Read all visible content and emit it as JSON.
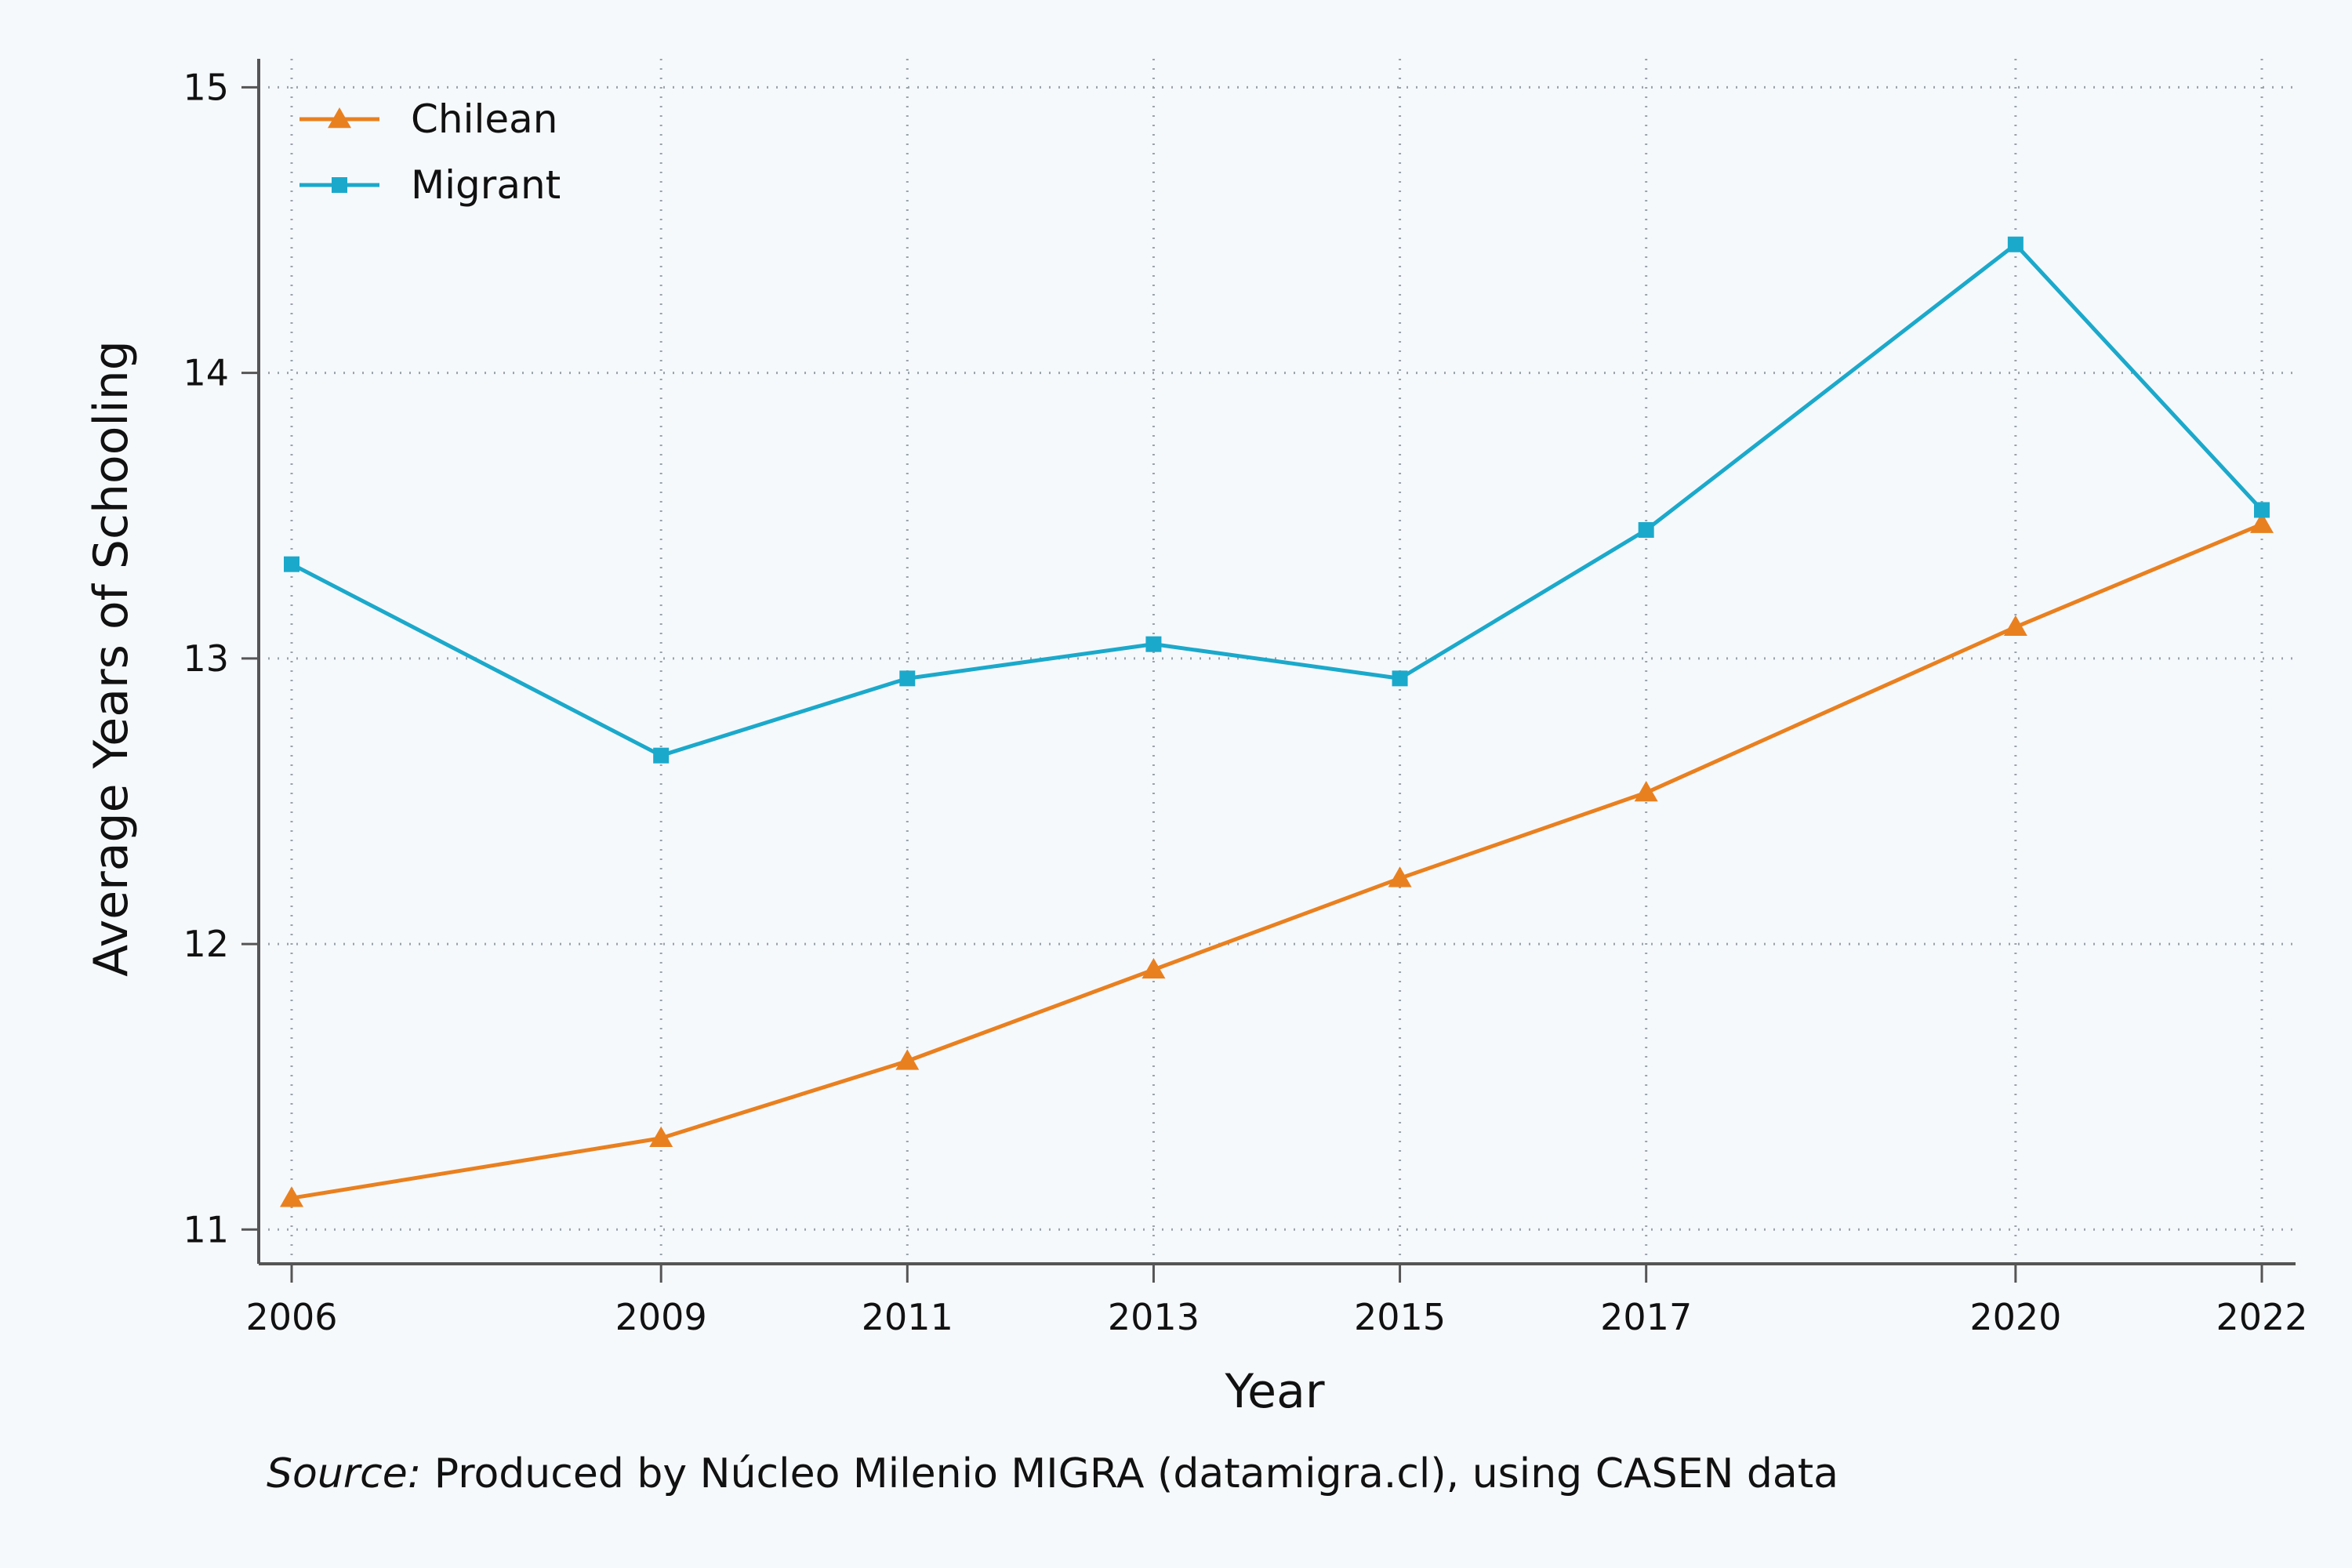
{
  "chart_data": {
    "type": "line",
    "x": [
      2006,
      2009,
      2011,
      2013,
      2015,
      2017,
      2020,
      2022
    ],
    "series": [
      {
        "name": "Chilean",
        "color": "#e9801f",
        "marker": "triangle",
        "values": [
          11.11,
          11.32,
          11.59,
          11.91,
          12.23,
          12.53,
          13.11,
          13.47
        ]
      },
      {
        "name": "Migrant",
        "color": "#1ba9cb",
        "marker": "square",
        "values": [
          13.33,
          12.66,
          12.93,
          13.05,
          12.93,
          13.45,
          14.45,
          13.52
        ]
      }
    ],
    "xlabel": "Year",
    "ylabel": "Average Years of Schooling",
    "ylim": [
      10.88,
      15.1
    ],
    "xticks": [
      "2006",
      "2009",
      "2011",
      "2013",
      "2015",
      "2017",
      "2020",
      "2022"
    ],
    "yticks": [
      "11",
      "12",
      "13",
      "14",
      "15"
    ],
    "grid": "dotted both axes",
    "legend_position": "top-left"
  },
  "source": {
    "label": "Source:",
    "text": "Produced by Núcleo Milenio MIGRA (datamigra.cl), using CASEN data"
  }
}
